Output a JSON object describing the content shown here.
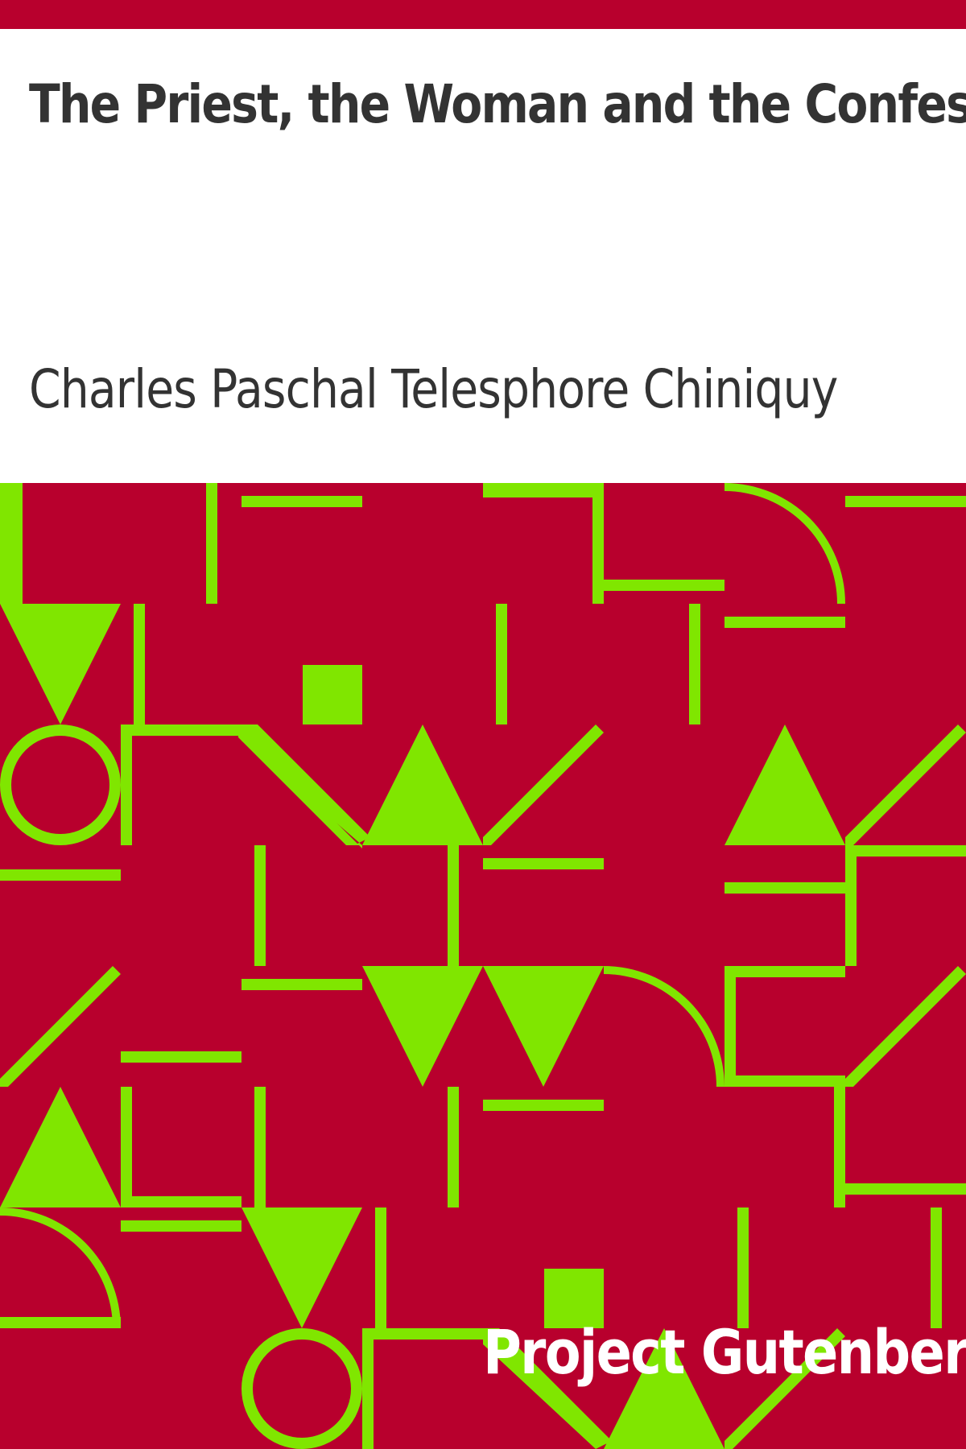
{
  "cover": {
    "title": "The Priest, the Woman and the Confessional",
    "author": "Charles Paschal Telesphore Chiniquy",
    "publisher": "Project Gutenberg"
  },
  "colors": {
    "primary": "#b8002d",
    "accent": "#80e600",
    "text": "#333333",
    "publisher_text": "#ffffff",
    "background": "#ffffff"
  },
  "icons": {
    "pattern": "geometric-pattern-icon"
  }
}
